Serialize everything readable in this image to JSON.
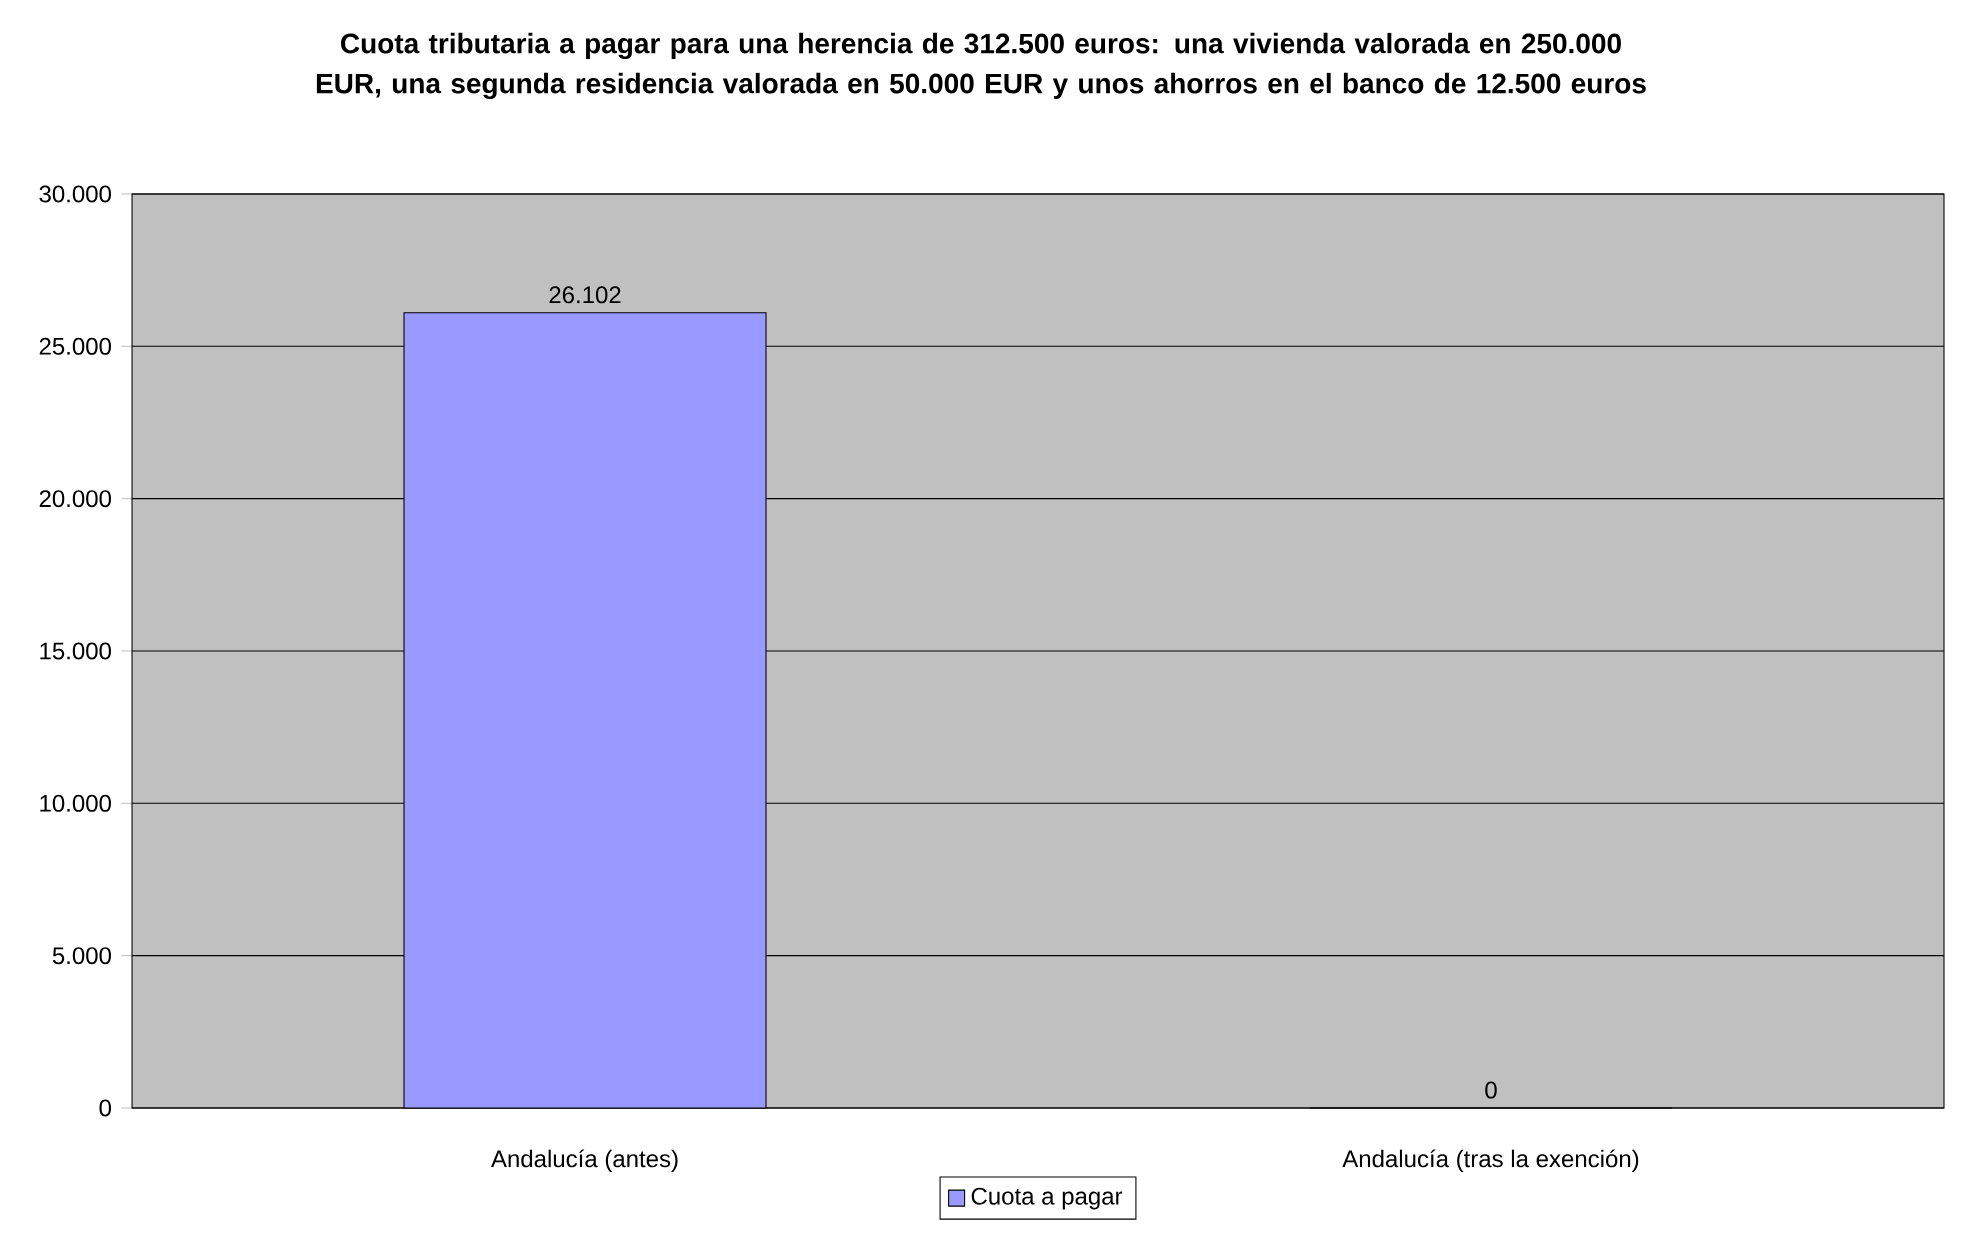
{
  "chart_data": {
    "type": "bar",
    "title": "Cuota tributaria a pagar para una herencia de 312.500 euros: una vivienda valorada en 250.000 EUR, una segunda residencia valorada en 50.000 EUR y unos ahorros en el banco de 12.500 euros",
    "categories": [
      "Andalucía (antes)",
      "Andalucía (tras la exención)"
    ],
    "series": [
      {
        "name": "Cuota a pagar",
        "color": "#9999ff",
        "values": [
          26102,
          0
        ],
        "value_labels": [
          "26.102",
          "0"
        ]
      }
    ],
    "ylim": [
      0,
      30000
    ],
    "yticks": [
      {
        "value": 0,
        "label": "0"
      },
      {
        "value": 5000,
        "label": "5.000"
      },
      {
        "value": 10000,
        "label": "10.000"
      },
      {
        "value": 15000,
        "label": "15.000"
      },
      {
        "value": 20000,
        "label": "20.000"
      },
      {
        "value": 25000,
        "label": "25.000"
      },
      {
        "value": 30000,
        "label": "30.000"
      }
    ],
    "grid": "y",
    "legend": "bottom"
  }
}
